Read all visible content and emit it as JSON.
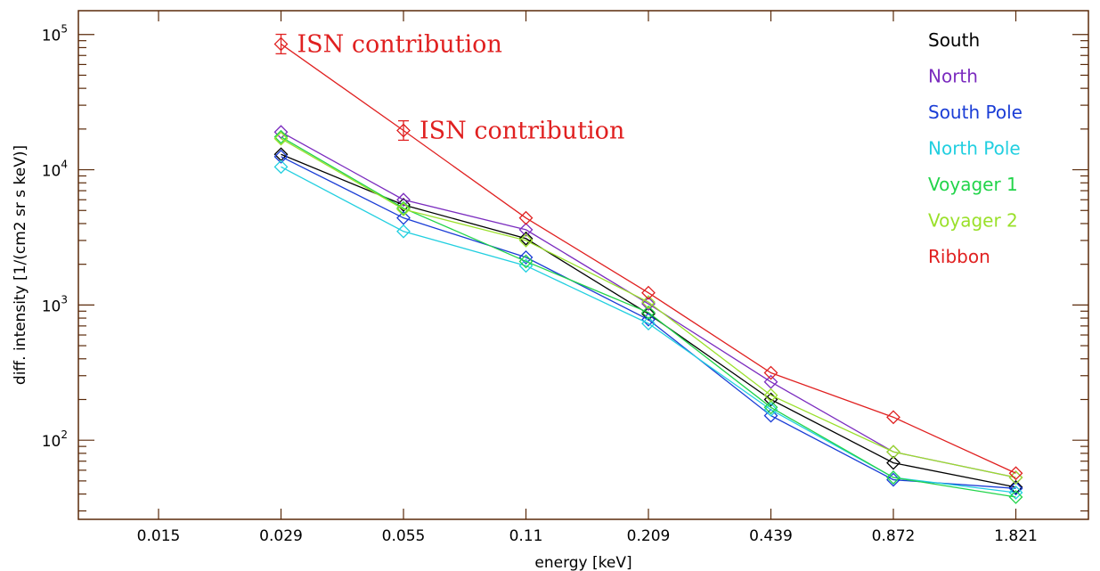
{
  "chart_data": {
    "type": "line",
    "title": "",
    "xlabel": "energy [keV]",
    "ylabel": "diff. intensity [1/(cm2 sr s keV)]",
    "x_scale": "categorical",
    "y_scale": "log",
    "ylim": [
      26,
      150000
    ],
    "categories": [
      "0.015",
      "0.029",
      "0.055",
      "0.11",
      "0.209",
      "0.439",
      "0.872",
      "1.821"
    ],
    "y_ticks": [
      {
        "value": 100,
        "base": "10",
        "exp": "2"
      },
      {
        "value": 1000,
        "base": "10",
        "exp": "3"
      },
      {
        "value": 10000,
        "base": "10",
        "exp": "4"
      },
      {
        "value": 100000,
        "base": "10",
        "exp": "5"
      }
    ],
    "legend_position": "top-right",
    "marker": "diamond",
    "series": [
      {
        "name": "South",
        "color": "#000000",
        "values": [
          null,
          13000,
          5500,
          3100,
          860,
          200,
          68,
          45
        ]
      },
      {
        "name": "North",
        "color": "#7b2cbf",
        "values": [
          null,
          19000,
          6000,
          3600,
          1020,
          270,
          82,
          53
        ]
      },
      {
        "name": "South Pole",
        "color": "#1a3dd6",
        "values": [
          null,
          12500,
          4400,
          2250,
          780,
          152,
          51,
          44
        ]
      },
      {
        "name": "North Pole",
        "color": "#22cfe0",
        "values": [
          null,
          10500,
          3500,
          1950,
          730,
          168,
          53,
          41
        ]
      },
      {
        "name": "Voyager 1",
        "color": "#22d44a",
        "values": [
          null,
          17500,
          5200,
          2100,
          880,
          175,
          53,
          38
        ]
      },
      {
        "name": "Voyager 2",
        "color": "#9ae02a",
        "values": [
          null,
          17000,
          5100,
          3000,
          1050,
          215,
          82,
          53
        ]
      },
      {
        "name": "Ribbon",
        "color": "#e02020",
        "values": [
          null,
          85000,
          19500,
          4400,
          1230,
          315,
          148,
          57
        ],
        "error_bar_points": [
          1,
          2
        ]
      }
    ],
    "annotations": [
      {
        "text": "ISN contribution",
        "category_index": 1,
        "value": 85000,
        "color": "#e02020"
      },
      {
        "text": "ISN contribution",
        "category_index": 2,
        "value": 19500,
        "color": "#e02020"
      }
    ]
  }
}
